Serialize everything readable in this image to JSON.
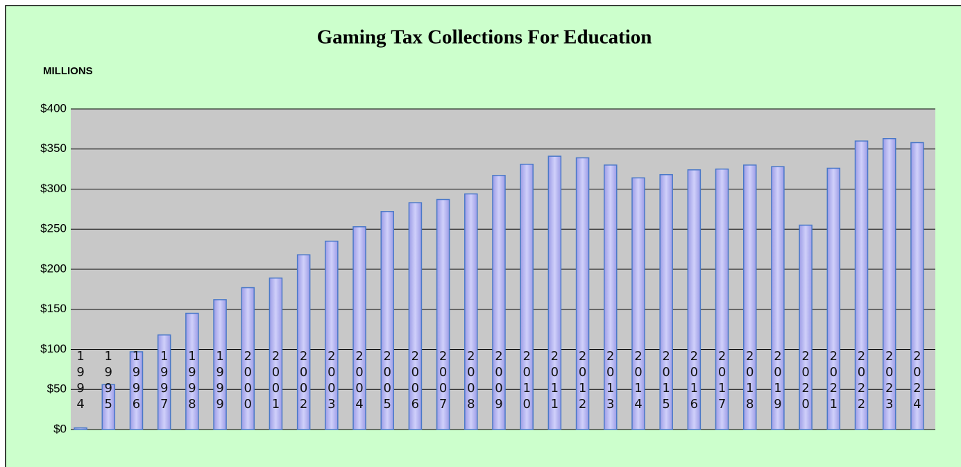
{
  "chart_data": {
    "type": "bar",
    "title": "Gaming Tax Collections For Education",
    "y_axis_label": "MILLIONS",
    "categories": [
      "1994",
      "1995",
      "1996",
      "1997",
      "1998",
      "1999",
      "2000",
      "2001",
      "2002",
      "2003",
      "2004",
      "2005",
      "2006",
      "2007",
      "2008",
      "2009",
      "2010",
      "2011",
      "2012",
      "2013",
      "2014",
      "2015",
      "2016",
      "2017",
      "2018",
      "2019",
      "2020",
      "2021",
      "2022",
      "2023",
      "2024"
    ],
    "values": [
      2,
      56,
      97,
      118,
      145,
      162,
      177,
      189,
      218,
      235,
      253,
      272,
      283,
      287,
      294,
      317,
      331,
      341,
      339,
      330,
      314,
      318,
      324,
      325,
      330,
      328,
      255,
      326,
      360,
      363,
      358
    ],
    "color": "#b4b4f2",
    "ylim": [
      0,
      400
    ],
    "yticks": [
      {
        "value": 0,
        "label": "$0"
      },
      {
        "value": 50,
        "label": "$50"
      },
      {
        "value": 100,
        "label": "$100"
      },
      {
        "value": 150,
        "label": "$150"
      },
      {
        "value": 200,
        "label": "$200"
      },
      {
        "value": 250,
        "label": "$250"
      },
      {
        "value": 300,
        "label": "$300"
      },
      {
        "value": 350,
        "label": "$350"
      },
      {
        "value": 400,
        "label": "$400"
      }
    ],
    "grid": true
  }
}
